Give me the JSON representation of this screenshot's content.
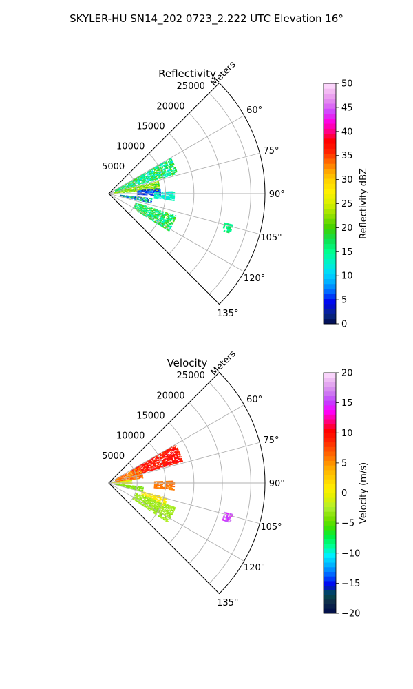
{
  "figure": {
    "title": "SKYLER-HU  SN14_202  0723_2.222 UTC Elevation 16°"
  },
  "chart_data": [
    {
      "type": "heatmap",
      "projection": "polar-sector",
      "title": "Reflectivity",
      "range_axis_label": "Meters",
      "range_ticks": [
        5000,
        10000,
        15000,
        20000,
        25000
      ],
      "range_tick_labels": [
        "5000",
        "10000",
        "15000",
        "20000",
        "25000"
      ],
      "range_max": 27500,
      "theta_range_deg": [
        45,
        135
      ],
      "theta_ticks_deg": [
        60,
        75,
        90,
        105,
        120,
        135
      ],
      "theta_tick_labels": [
        "60°",
        "75°",
        "90°",
        "105°",
        "120°",
        "135°"
      ],
      "grid": true,
      "colorbar": {
        "label": "Reflectivity dBZ",
        "range": [
          0,
          50
        ],
        "ticks": [
          "0",
          "5",
          "10",
          "15",
          "20",
          "25",
          "30",
          "35",
          "40",
          "45",
          "50"
        ]
      },
      "echo_regions": [
        {
          "theta": [
            60,
            74
          ],
          "range": [
            1200,
            12500
          ],
          "value": [
            10,
            22
          ]
        },
        {
          "theta": [
            76,
            86
          ],
          "range": [
            1000,
            9000
          ],
          "value": [
            18,
            26
          ]
        },
        {
          "theta": [
            84,
            92
          ],
          "range": [
            5000,
            9000
          ],
          "value": [
            2,
            8
          ]
        },
        {
          "theta": [
            88,
            96
          ],
          "range": [
            8000,
            11500
          ],
          "value": [
            10,
            15
          ]
        },
        {
          "theta": [
            96,
            103
          ],
          "range": [
            2000,
            7500
          ],
          "value": [
            2,
            22
          ]
        },
        {
          "theta": [
            108,
            122
          ],
          "range": [
            5000,
            12500
          ],
          "value": [
            12,
            22
          ]
        },
        {
          "theta": [
            104,
            108
          ],
          "range": [
            21000,
            22500
          ],
          "value": [
            14,
            18
          ]
        }
      ]
    },
    {
      "type": "heatmap",
      "projection": "polar-sector",
      "title": "Velocity",
      "range_axis_label": "Meters",
      "range_ticks": [
        5000,
        10000,
        15000,
        20000,
        25000
      ],
      "range_tick_labels": [
        "5000",
        "10000",
        "15000",
        "20000",
        "25000"
      ],
      "range_max": 27500,
      "theta_range_deg": [
        45,
        135
      ],
      "theta_ticks_deg": [
        60,
        75,
        90,
        105,
        120,
        135
      ],
      "theta_tick_labels": [
        "60°",
        "75°",
        "90°",
        "105°",
        "120°",
        "135°"
      ],
      "grid": true,
      "colorbar": {
        "label": "Velocity (m/s)",
        "range": [
          -20,
          20
        ],
        "ticks": [
          "−20",
          "−15",
          "−10",
          "−5",
          "0",
          "5",
          "10",
          "15",
          "20"
        ]
      },
      "echo_regions": [
        {
          "theta": [
            60,
            74
          ],
          "range": [
            4500,
            13500
          ],
          "value": [
            8,
            11
          ]
        },
        {
          "theta": [
            62,
            82
          ],
          "range": [
            1200,
            6000
          ],
          "value": [
            4,
            8
          ]
        },
        {
          "theta": [
            82,
            92
          ],
          "range": [
            500,
            4000
          ],
          "value": [
            -2,
            2
          ]
        },
        {
          "theta": [
            88,
            96
          ],
          "range": [
            8000,
            11500
          ],
          "value": [
            5,
            7
          ]
        },
        {
          "theta": [
            96,
            104
          ],
          "range": [
            1000,
            6000
          ],
          "value": [
            -5,
            -3
          ]
        },
        {
          "theta": [
            104,
            112
          ],
          "range": [
            6000,
            10500
          ],
          "value": [
            0,
            2
          ]
        },
        {
          "theta": [
            110,
            124
          ],
          "range": [
            5000,
            12500
          ],
          "value": [
            -4,
            -2
          ]
        },
        {
          "theta": [
            104,
            108
          ],
          "range": [
            21000,
            22500
          ],
          "value": [
            14,
            18
          ]
        }
      ]
    }
  ]
}
